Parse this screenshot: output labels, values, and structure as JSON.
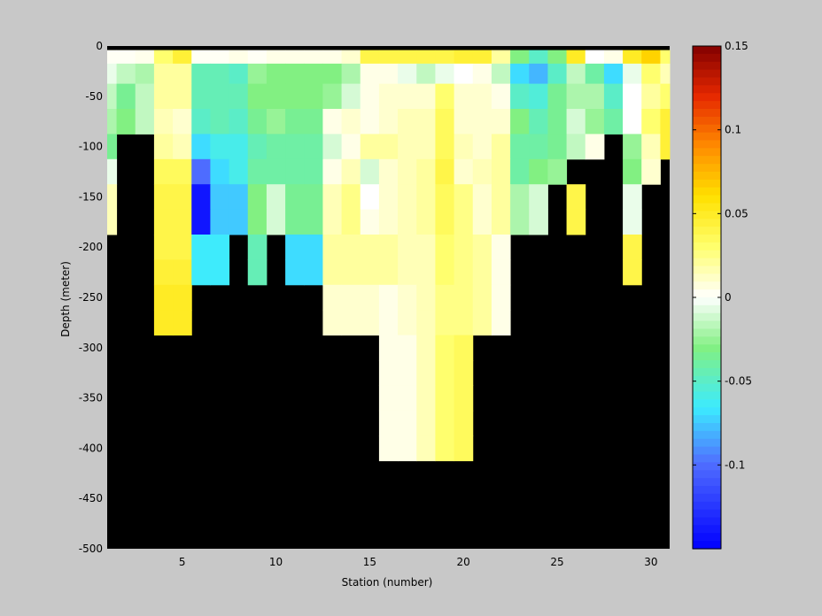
{
  "chart_data": {
    "type": "heatmap",
    "xlabel": "Station (number)",
    "ylabel": "Depth (meter)",
    "xlim": [
      1,
      31
    ],
    "ylim": [
      -500,
      0
    ],
    "xticks": [
      5,
      10,
      15,
      20,
      25,
      30
    ],
    "yticks": [
      0,
      -50,
      -100,
      -150,
      -200,
      -250,
      -300,
      -350,
      -400,
      -450,
      -500
    ],
    "colorbar": {
      "range": [
        -0.15,
        0.15
      ],
      "ticks": [
        0.15,
        0.1,
        0.05,
        0,
        -0.05,
        -0.1
      ],
      "tick_labels": [
        "0.15",
        "0.1",
        "0.05",
        "0",
        "-0.05",
        "-0.1"
      ],
      "colormap": "blue-cyan-green-white-yellow-orange-red"
    },
    "nodata_color": "#000000",
    "surface_band": "black",
    "depth_rows": [
      -10,
      -25,
      -50,
      -75,
      -100,
      -125,
      -150,
      -175,
      -200,
      -225,
      -250,
      -275,
      -300,
      -325,
      -350,
      -375,
      -400
    ],
    "stations": [
      1,
      2,
      3,
      4,
      5,
      6,
      7,
      8,
      9,
      10,
      11,
      12,
      13,
      14,
      15,
      16,
      17,
      18,
      19,
      20,
      21,
      22,
      23,
      24,
      25,
      26,
      27,
      28,
      29,
      30,
      31
    ],
    "values": [
      [
        0.002,
        0.002,
        0.004,
        0.03,
        0.045,
        0.002,
        0.002,
        0.005,
        0.002,
        0.005,
        0.005,
        0.005,
        0.005,
        0.01,
        0.04,
        0.04,
        0.04,
        0.04,
        0.04,
        0.045,
        0.045,
        0.02,
        -0.03,
        -0.05,
        -0.03,
        0.05,
        0.0,
        0.005,
        0.05,
        0.065,
        0.03
      ],
      [
        -0.005,
        -0.015,
        -0.02,
        0.02,
        0.02,
        -0.045,
        -0.045,
        -0.05,
        -0.025,
        -0.03,
        -0.03,
        -0.03,
        -0.03,
        -0.02,
        0.005,
        0.005,
        -0.005,
        -0.015,
        -0.005,
        0.0,
        0.005,
        -0.015,
        -0.07,
        -0.08,
        -0.05,
        -0.015,
        -0.04,
        -0.07,
        -0.005,
        0.03,
        0.015
      ],
      [
        -0.015,
        -0.035,
        -0.015,
        0.02,
        0.02,
        -0.045,
        -0.045,
        -0.045,
        -0.03,
        -0.03,
        -0.03,
        -0.03,
        -0.025,
        -0.01,
        0.005,
        0.01,
        0.01,
        0.01,
        0.03,
        0.01,
        0.01,
        0.005,
        -0.05,
        -0.055,
        -0.035,
        -0.02,
        -0.02,
        -0.05,
        0.0,
        0.02,
        0.03
      ],
      [
        -0.02,
        -0.03,
        -0.015,
        0.015,
        0.01,
        -0.05,
        -0.045,
        -0.05,
        -0.035,
        -0.025,
        -0.035,
        -0.035,
        0.005,
        0.01,
        0.005,
        0.01,
        0.015,
        0.015,
        0.035,
        0.01,
        0.01,
        0.01,
        -0.03,
        -0.045,
        -0.035,
        -0.01,
        -0.025,
        -0.04,
        0.0,
        0.03,
        0.045
      ],
      [
        -0.035,
        null,
        null,
        0.02,
        0.015,
        -0.07,
        -0.06,
        -0.06,
        -0.045,
        -0.04,
        -0.04,
        -0.04,
        -0.01,
        0.005,
        0.02,
        0.02,
        0.015,
        0.015,
        0.035,
        0.015,
        0.01,
        0.02,
        -0.04,
        -0.04,
        -0.035,
        -0.015,
        0.005,
        null,
        -0.025,
        0.015,
        0.045
      ],
      [
        -0.005,
        null,
        null,
        0.035,
        0.035,
        -0.1,
        -0.07,
        -0.06,
        -0.04,
        -0.04,
        -0.04,
        -0.04,
        0.005,
        0.015,
        -0.01,
        0.01,
        0.015,
        0.02,
        0.04,
        0.01,
        0.015,
        0.02,
        -0.04,
        -0.03,
        -0.025,
        null,
        null,
        null,
        -0.03,
        0.01,
        null
      ],
      [
        0.015,
        null,
        null,
        0.04,
        0.04,
        -0.14,
        -0.075,
        -0.075,
        -0.03,
        -0.01,
        -0.035,
        -0.035,
        0.015,
        0.025,
        0.0,
        0.01,
        0.015,
        0.02,
        0.035,
        0.025,
        0.01,
        0.02,
        -0.02,
        -0.01,
        null,
        0.04,
        null,
        null,
        -0.005,
        null,
        null
      ],
      [
        0.015,
        null,
        null,
        0.04,
        0.04,
        -0.14,
        -0.075,
        -0.075,
        -0.03,
        -0.01,
        -0.035,
        -0.035,
        0.015,
        0.025,
        0.005,
        0.01,
        0.015,
        0.02,
        0.035,
        0.025,
        0.01,
        0.02,
        -0.02,
        -0.01,
        null,
        0.04,
        null,
        null,
        -0.005,
        null,
        null
      ],
      [
        null,
        null,
        null,
        0.04,
        0.04,
        -0.065,
        -0.065,
        null,
        -0.045,
        null,
        -0.07,
        -0.07,
        0.02,
        0.02,
        0.02,
        0.02,
        0.015,
        0.015,
        0.03,
        0.025,
        0.02,
        0.005,
        null,
        null,
        null,
        null,
        null,
        null,
        0.04,
        null,
        null
      ],
      [
        null,
        null,
        null,
        0.045,
        0.045,
        -0.065,
        -0.065,
        null,
        -0.045,
        null,
        -0.07,
        -0.07,
        0.02,
        0.02,
        0.02,
        0.02,
        0.015,
        0.015,
        0.03,
        0.025,
        0.02,
        0.005,
        null,
        null,
        null,
        null,
        null,
        null,
        0.04,
        null,
        null
      ],
      [
        null,
        null,
        null,
        0.05,
        0.05,
        null,
        null,
        null,
        null,
        null,
        null,
        null,
        0.01,
        0.01,
        0.01,
        0.005,
        0.01,
        0.015,
        0.025,
        0.025,
        0.02,
        0.005,
        null,
        null,
        null,
        null,
        null,
        null,
        null,
        null,
        null
      ],
      [
        null,
        null,
        null,
        0.05,
        0.05,
        null,
        null,
        null,
        null,
        null,
        null,
        null,
        0.01,
        0.01,
        0.01,
        0.005,
        0.01,
        0.015,
        0.025,
        0.025,
        0.02,
        0.005,
        null,
        null,
        null,
        null,
        null,
        null,
        null,
        null,
        null
      ],
      [
        null,
        null,
        null,
        null,
        null,
        null,
        null,
        null,
        null,
        null,
        null,
        null,
        null,
        null,
        null,
        0.005,
        0.005,
        0.015,
        0.03,
        0.035,
        null,
        null,
        null,
        null,
        null,
        null,
        null,
        null,
        null,
        null,
        null
      ],
      [
        null,
        null,
        null,
        null,
        null,
        null,
        null,
        null,
        null,
        null,
        null,
        null,
        null,
        null,
        null,
        0.005,
        0.005,
        0.015,
        0.03,
        0.035,
        null,
        null,
        null,
        null,
        null,
        null,
        null,
        null,
        null,
        null,
        null
      ],
      [
        null,
        null,
        null,
        null,
        null,
        null,
        null,
        null,
        null,
        null,
        null,
        null,
        null,
        null,
        null,
        0.005,
        0.005,
        0.015,
        0.03,
        0.035,
        null,
        null,
        null,
        null,
        null,
        null,
        null,
        null,
        null,
        null,
        null
      ],
      [
        null,
        null,
        null,
        null,
        null,
        null,
        null,
        null,
        null,
        null,
        null,
        null,
        null,
        null,
        null,
        0.005,
        0.005,
        0.015,
        0.03,
        0.035,
        null,
        null,
        null,
        null,
        null,
        null,
        null,
        null,
        null,
        null,
        null
      ],
      [
        null,
        null,
        null,
        null,
        null,
        null,
        null,
        null,
        null,
        null,
        null,
        null,
        null,
        null,
        null,
        0.005,
        0.005,
        0.015,
        0.03,
        0.035,
        null,
        null,
        null,
        null,
        null,
        null,
        null,
        null,
        null,
        null,
        null
      ]
    ]
  }
}
